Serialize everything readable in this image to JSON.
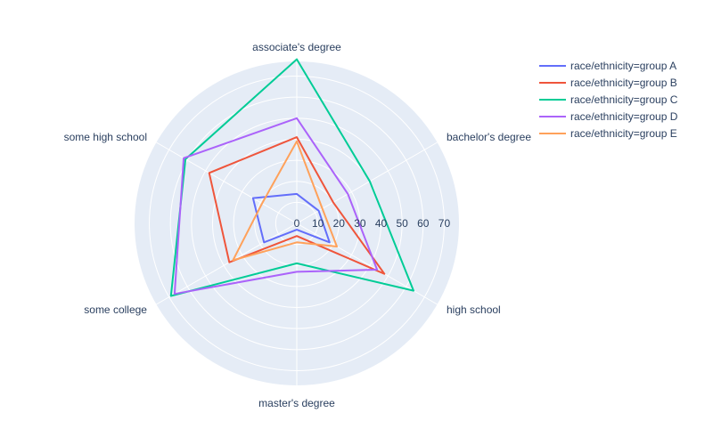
{
  "chart_data": {
    "type": "radar",
    "title": "",
    "categories": [
      "associate's degree",
      "bachelor's degree",
      "high school",
      "master's degree",
      "some college",
      "some high school"
    ],
    "radial_ticks": [
      "0",
      "10",
      "20",
      "30",
      "40",
      "50",
      "60",
      "70"
    ],
    "radial_range": [
      0,
      77
    ],
    "grid": true,
    "legend_position": "top-right",
    "series": [
      {
        "name": "race/ethnicity=group A",
        "color": "#636efa",
        "values": [
          14,
          12,
          18,
          3,
          18,
          24
        ]
      },
      {
        "name": "race/ethnicity=group B",
        "color": "#EF553B",
        "values": [
          41,
          20,
          48,
          6,
          37,
          48
        ]
      },
      {
        "name": "race/ethnicity=group C",
        "color": "#00cc96",
        "values": [
          78,
          40,
          64,
          19,
          69,
          61
        ]
      },
      {
        "name": "race/ethnicity=group D",
        "color": "#ab63fa",
        "values": [
          50,
          28,
          44,
          23,
          67,
          62
        ]
      },
      {
        "name": "race/ethnicity=group E",
        "color": "#FFA15A",
        "values": [
          39,
          14,
          22,
          9,
          35,
          19
        ]
      }
    ]
  }
}
